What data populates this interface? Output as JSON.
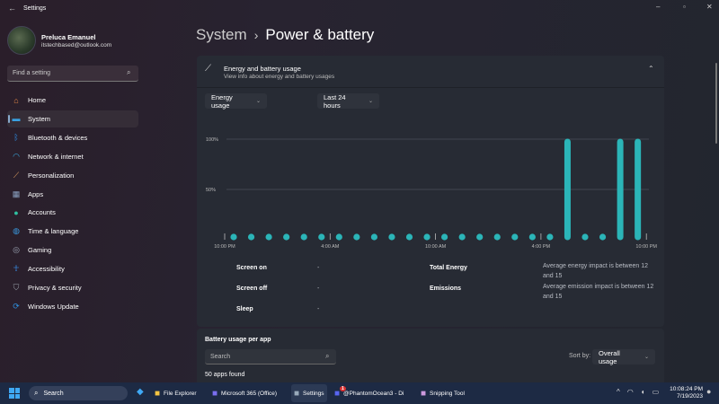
{
  "window": {
    "title": "Settings",
    "controls": [
      "minimize",
      "maximize",
      "close"
    ]
  },
  "user": {
    "name": "Preluca Emanuel",
    "email": "itstechbased@outlook.com"
  },
  "search": {
    "placeholder": "Find a setting"
  },
  "sidebar": {
    "items": [
      {
        "label": "Home",
        "icon": "home-icon",
        "color": "#e8894a"
      },
      {
        "label": "System",
        "icon": "monitor-icon",
        "color": "#3aa0e0",
        "active": true
      },
      {
        "label": "Bluetooth & devices",
        "icon": "bluetooth-icon",
        "color": "#2f8fe8"
      },
      {
        "label": "Network & internet",
        "icon": "wifi-icon",
        "color": "#3ab0e8"
      },
      {
        "label": "Personalization",
        "icon": "brush-icon",
        "color": "#e0a060"
      },
      {
        "label": "Apps",
        "icon": "apps-icon",
        "color": "#8aa0c0"
      },
      {
        "label": "Accounts",
        "icon": "person-icon",
        "color": "#30c0a0"
      },
      {
        "label": "Time & language",
        "icon": "globe-clock-icon",
        "color": "#3a9ae0"
      },
      {
        "label": "Gaming",
        "icon": "gamepad-icon",
        "color": "#a0a8b8"
      },
      {
        "label": "Accessibility",
        "icon": "accessibility-icon",
        "color": "#3a8ee8"
      },
      {
        "label": "Privacy & security",
        "icon": "shield-icon",
        "color": "#9aa0aa"
      },
      {
        "label": "Windows Update",
        "icon": "update-icon",
        "color": "#2f90e0"
      }
    ]
  },
  "breadcrumb": {
    "parent": "System",
    "separator": "›",
    "current": "Power & battery"
  },
  "energy_card": {
    "title": "Energy and battery usage",
    "subtitle": "View info about energy and battery usages",
    "usage_dropdown": "Energy usage",
    "range_dropdown": "Last 24 hours"
  },
  "chart_data": {
    "type": "bar",
    "y_ticks": [
      "100%",
      "50%"
    ],
    "ylim": [
      0,
      100
    ],
    "x_ticks": [
      "10:00 PM",
      "4:00 AM",
      "10:00 AM",
      "4:00 PM",
      "10:00 PM"
    ],
    "grid": true,
    "color": "#2bb5b8",
    "values": [
      0,
      0,
      0,
      0,
      0,
      0,
      0,
      0,
      0,
      0,
      0,
      0,
      0,
      0,
      0,
      0,
      0,
      0,
      0,
      100,
      0,
      0,
      100,
      100
    ]
  },
  "stats": {
    "left": [
      {
        "label": "Screen on",
        "value": "-"
      },
      {
        "label": "Screen off",
        "value": "-"
      },
      {
        "label": "Sleep",
        "value": "-"
      }
    ],
    "right": [
      {
        "label": "Total Energy",
        "value": "Average energy impact is between 12 and 15"
      },
      {
        "label": "Emissions",
        "value": "Average emission impact is between 12 and 15"
      }
    ]
  },
  "per_app": {
    "title": "Battery usage per app",
    "search_placeholder": "Search",
    "sort_label": "Sort by:",
    "sort_value": "Overall usage",
    "count": "50 apps found"
  },
  "taskbar": {
    "search": "Search",
    "apps": [
      {
        "label": "File Explorer"
      },
      {
        "label": "Microsoft 365 (Office)"
      },
      {
        "label": "Settings"
      },
      {
        "label": "@PhantomOcean3 - Di",
        "badge": "1"
      },
      {
        "label": "Snipping Tool"
      }
    ],
    "time": "10:08:24 PM",
    "date": "7/19/2023"
  }
}
